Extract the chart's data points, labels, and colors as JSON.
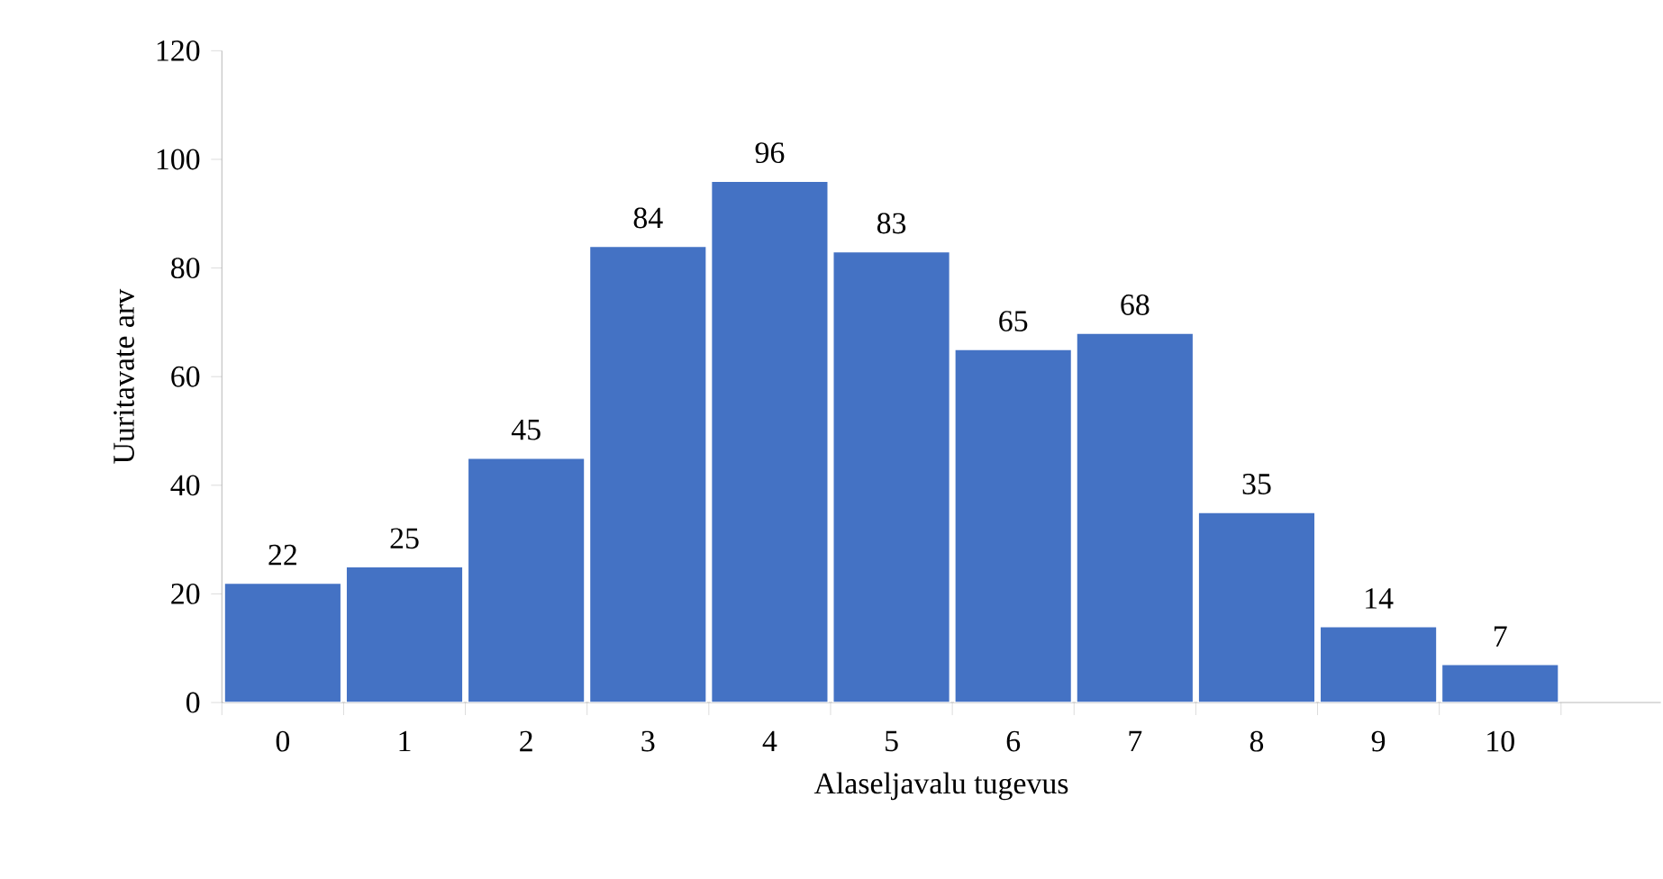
{
  "chart_data": {
    "type": "bar",
    "xlabel": "Alaseljavalu tugevus",
    "ylabel": "Uuritavate arv",
    "categories": [
      "0",
      "1",
      "2",
      "3",
      "4",
      "5",
      "6",
      "7",
      "8",
      "9",
      "10"
    ],
    "values": [
      22,
      25,
      45,
      84,
      96,
      83,
      65,
      68,
      35,
      14,
      7
    ],
    "color": "#4472c4",
    "ylim": [
      0,
      120
    ],
    "yticks": [
      0,
      20,
      40,
      60,
      80,
      100,
      120
    ],
    "data_labels": true,
    "grid": false
  }
}
